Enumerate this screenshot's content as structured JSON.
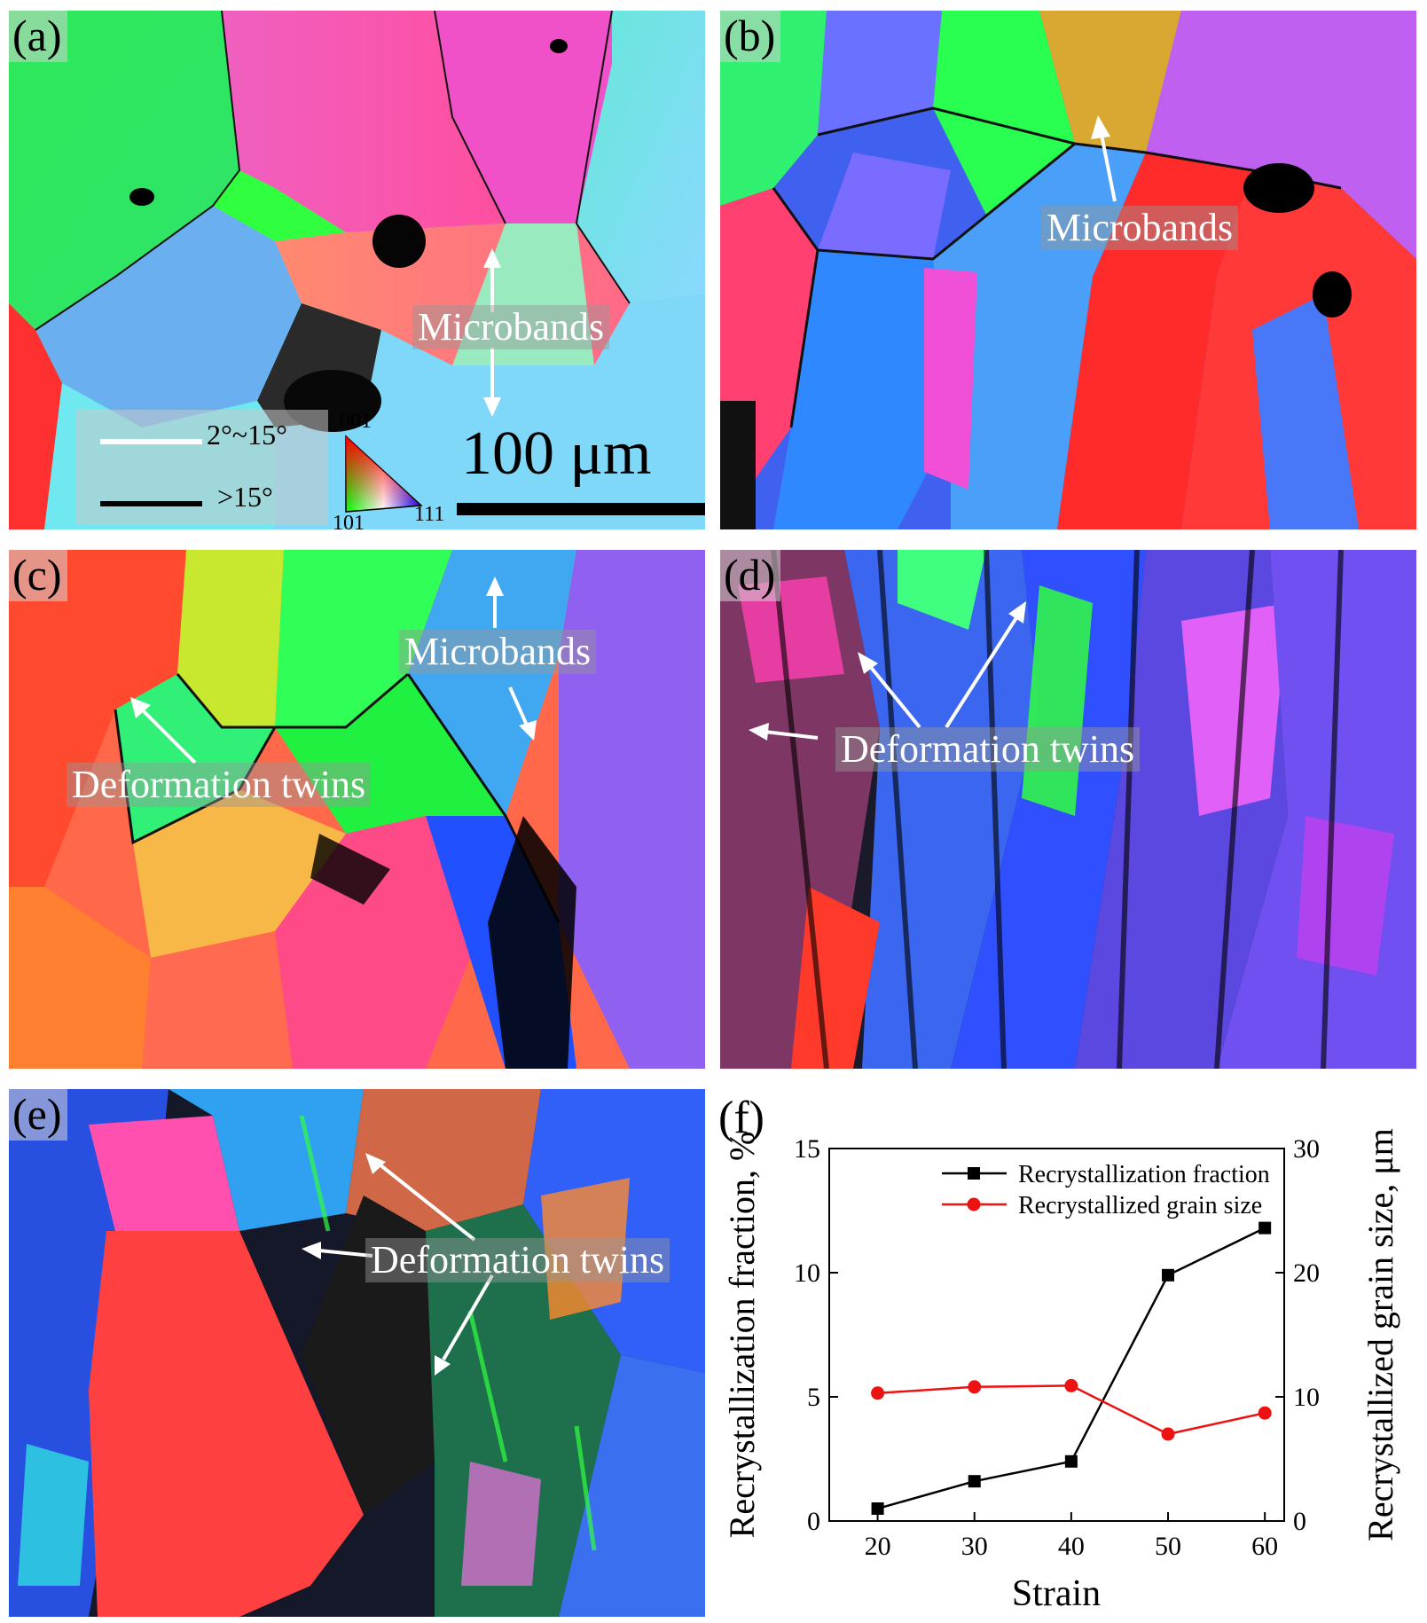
{
  "panels": {
    "a": {
      "label": "(a)",
      "annotations": [
        "Microbands"
      ]
    },
    "b": {
      "label": "(b)",
      "annotations": [
        "Microbands"
      ]
    },
    "c": {
      "label": "(c)",
      "annotations": [
        "Microbands",
        "Deformation twins"
      ]
    },
    "d": {
      "label": "(d)",
      "annotations": [
        "Deformation twins"
      ]
    },
    "e": {
      "label": "(e)",
      "annotations": [
        "Deformation twins"
      ]
    },
    "f": {
      "label": "(f)"
    }
  },
  "legend": {
    "low_angle": "2°~15°",
    "high_angle": ">15°",
    "ipf_001": "001",
    "ipf_101": "101",
    "ipf_111": "111",
    "low_angle_color": "#ffffff",
    "high_angle_color": "#000000"
  },
  "scale_bar": "100 μm",
  "chart_data": {
    "type": "line",
    "xlabel": "Strain",
    "ylabel_left": "Recrystallization fraction, %",
    "ylabel_right": "Recrystallized grain size, μm",
    "x": [
      20,
      30,
      40,
      50,
      60
    ],
    "xlim": [
      15,
      62
    ],
    "ylim_left": [
      0,
      15
    ],
    "ylim_right": [
      0,
      30
    ],
    "xticks": [
      20,
      30,
      40,
      50,
      60
    ],
    "yticks_left": [
      0,
      5,
      10,
      15
    ],
    "yticks_right": [
      0,
      10,
      20,
      30
    ],
    "grid": false,
    "legend_position": "top-right",
    "series": [
      {
        "name": "Recrystallization fraction",
        "axis": "left",
        "marker": "square",
        "color": "#000000",
        "values": [
          0.5,
          1.6,
          2.4,
          9.9,
          11.8
        ]
      },
      {
        "name": "Recrystallized grain size",
        "axis": "right",
        "marker": "circle",
        "color": "#ee1111",
        "values": [
          10.3,
          10.8,
          10.9,
          7.0,
          8.7
        ]
      }
    ]
  }
}
